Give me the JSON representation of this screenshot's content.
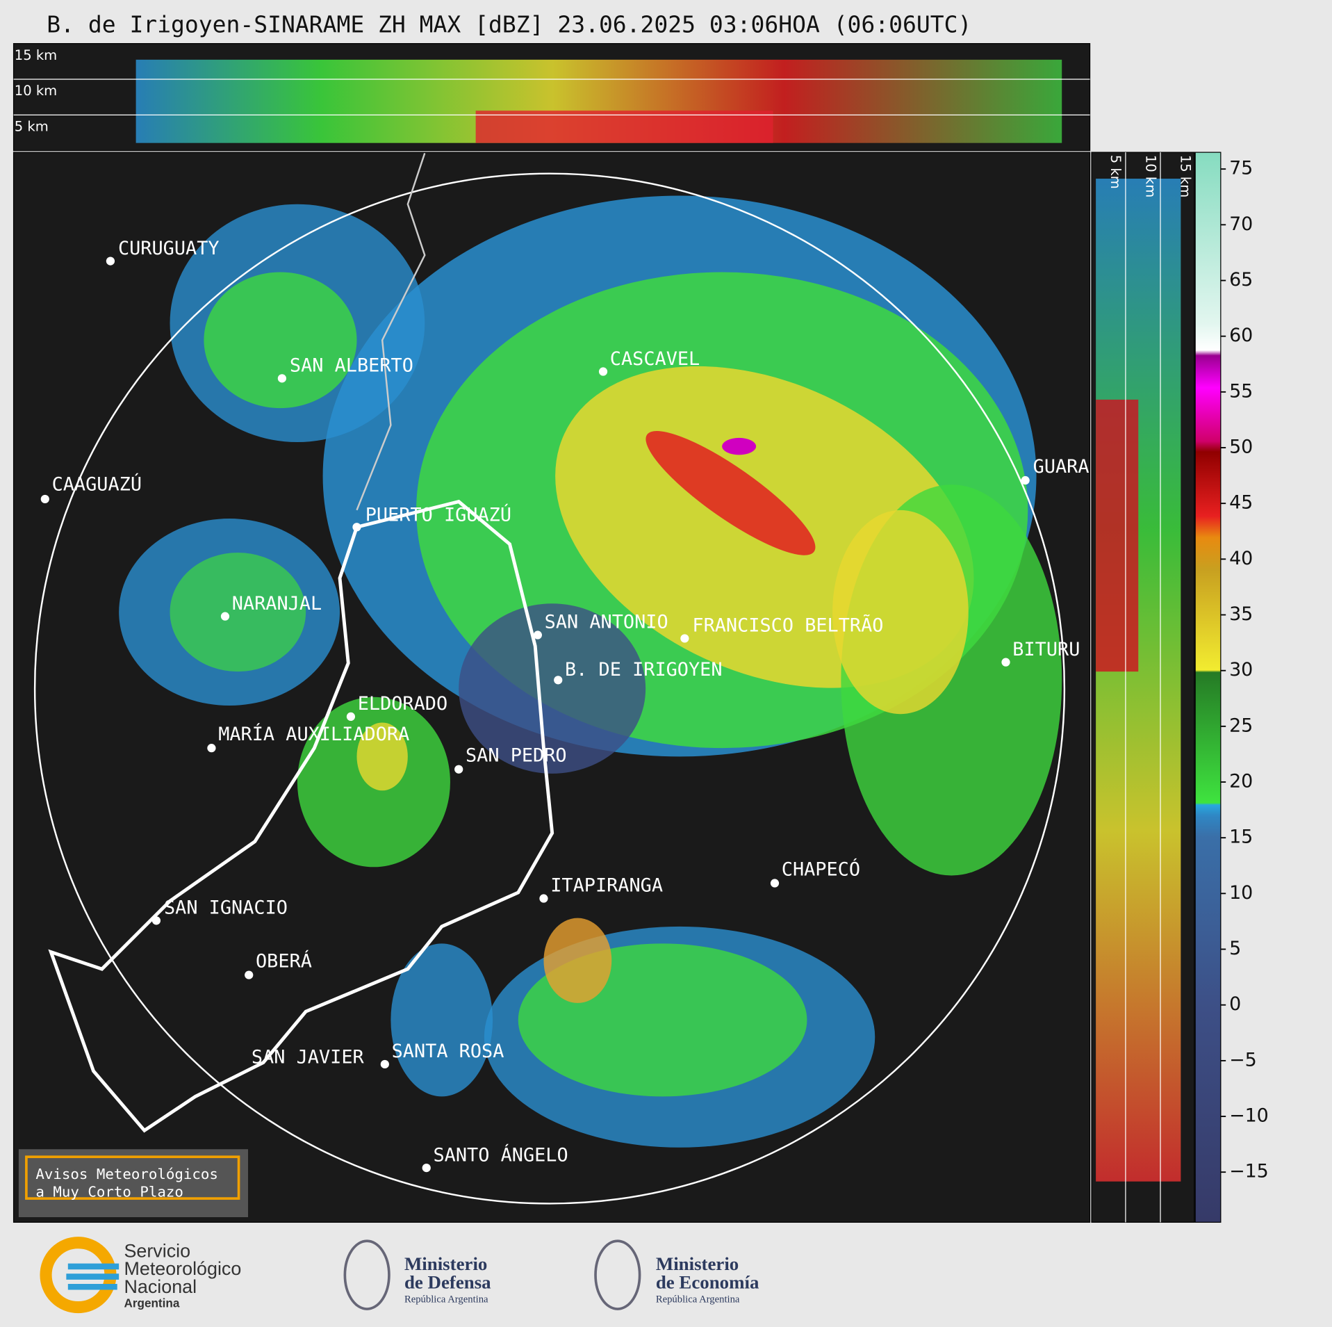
{
  "header": {
    "title": "B. de Irigoyen-SINARAME ZH MAX [dBZ] 23.06.2025 03:06HOA (06:06UTC)"
  },
  "cross_sections": {
    "top_labels": [
      "15 km",
      "10 km",
      "5 km"
    ],
    "side_labels": [
      "5 km",
      "10 km",
      "15 km"
    ]
  },
  "cities": [
    "CURUGUATY",
    "SAN ALBERTO",
    "CAAGUAZÚ",
    "PUERTO IGUAZÚ",
    "NARANJAL",
    "SAN ANTONIO",
    "FRANCISCO BELTRÃO",
    "B. DE IRIGOYEN",
    "BITURU",
    "GUARA",
    "CASCAVEL",
    "ELDORADO",
    "MARÍA AUXILIADORA",
    "SAN PEDRO",
    "CHAPECÓ",
    "ITAPIRANGA",
    "SAN IGNACIO",
    "OBERÁ",
    "SAN JAVIER",
    "SANTA ROSA",
    "SANTO ÁNGELO"
  ],
  "colorbar": {
    "lim": [
      -19.5,
      76.5
    ],
    "ticks": [
      75,
      70,
      65,
      60,
      55,
      50,
      45,
      40,
      35,
      30,
      25,
      20,
      15,
      10,
      5,
      0,
      {
        "value": -5,
        "label": "−5"
      },
      {
        "value": -10,
        "label": "−10"
      },
      {
        "value": -15,
        "label": "−15"
      }
    ]
  },
  "notice": [
    "Avisos Meteorológicos",
    "a Muy Corto Plazo"
  ],
  "logos": {
    "smn": [
      "Servicio",
      "Meteorológico",
      "Nacional",
      "Argentina"
    ],
    "defensa": [
      "Ministerio",
      "de Defensa",
      "República Argentina"
    ],
    "economia": [
      "Ministerio",
      "de Economía",
      "República Argentina"
    ]
  }
}
